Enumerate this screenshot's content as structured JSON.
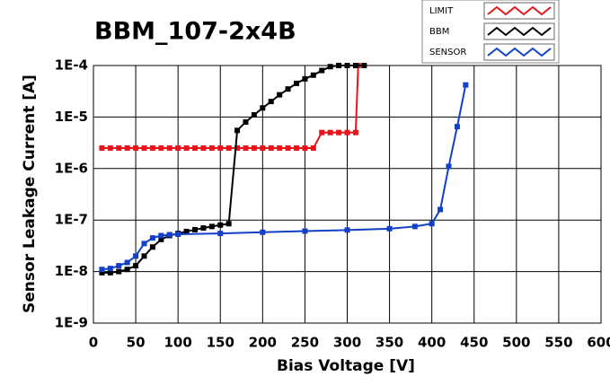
{
  "chart_data": {
    "type": "line",
    "title": "BBM_107-2x4B",
    "x_label": "Bias Voltage [V]",
    "y_label": "Sensor Leakage Current [A]",
    "xlim": [
      0,
      600
    ],
    "xticks": [
      0,
      50,
      100,
      150,
      200,
      250,
      300,
      350,
      400,
      450,
      500,
      550,
      600
    ],
    "ylim": [
      1e-09,
      0.0001
    ],
    "log_y": true,
    "grid": true,
    "yticks": [
      {
        "value": 1e-09,
        "label": "1E-9"
      },
      {
        "value": 1e-08,
        "label": "1E-8"
      },
      {
        "value": 1e-07,
        "label": "1E-7"
      },
      {
        "value": 1e-06,
        "label": "1E-6"
      },
      {
        "value": 1e-05,
        "label": "1E-5"
      },
      {
        "value": 0.0001,
        "label": "1E-4"
      }
    ],
    "series": [
      {
        "name": "LIMIT",
        "color": "#e8141b",
        "x": [
          10,
          20,
          30,
          40,
          50,
          60,
          70,
          80,
          90,
          100,
          110,
          120,
          130,
          140,
          150,
          160,
          170,
          180,
          190,
          200,
          210,
          220,
          230,
          240,
          250,
          260,
          270,
          280,
          290,
          300,
          310,
          313
        ],
        "values": [
          2.5e-06,
          2.5e-06,
          2.5e-06,
          2.5e-06,
          2.5e-06,
          2.5e-06,
          2.5e-06,
          2.5e-06,
          2.5e-06,
          2.5e-06,
          2.5e-06,
          2.5e-06,
          2.5e-06,
          2.5e-06,
          2.5e-06,
          2.5e-06,
          2.5e-06,
          2.5e-06,
          2.5e-06,
          2.5e-06,
          2.5e-06,
          2.5e-06,
          2.5e-06,
          2.5e-06,
          2.5e-06,
          2.5e-06,
          5e-06,
          5e-06,
          5e-06,
          5e-06,
          5e-06,
          0.0001
        ]
      },
      {
        "name": "BBM",
        "color": "#000000",
        "x": [
          10,
          20,
          30,
          40,
          50,
          60,
          70,
          80,
          90,
          100,
          110,
          120,
          130,
          140,
          150,
          160,
          170,
          180,
          190,
          200,
          210,
          220,
          230,
          240,
          250,
          260,
          270,
          280,
          290,
          300,
          310,
          320
        ],
        "values": [
          9.5e-09,
          9.5e-09,
          1e-08,
          1.1e-08,
          1.3e-08,
          2e-08,
          3e-08,
          4.2e-08,
          5e-08,
          5.5e-08,
          6e-08,
          6.5e-08,
          7e-08,
          7.5e-08,
          8e-08,
          8.5e-08,
          5.5e-06,
          8e-06,
          1.1e-05,
          1.5e-05,
          2e-05,
          2.7e-05,
          3.5e-05,
          4.5e-05,
          5.5e-05,
          6.5e-05,
          8e-05,
          9.5e-05,
          0.0001,
          0.0001,
          0.0001,
          0.0001
        ]
      },
      {
        "name": "SENSOR",
        "color": "#1240c8",
        "x": [
          10,
          20,
          30,
          40,
          50,
          60,
          70,
          80,
          90,
          100,
          150,
          200,
          250,
          300,
          350,
          380,
          400,
          410,
          420,
          430,
          440
        ],
        "values": [
          1.1e-08,
          1.15e-08,
          1.3e-08,
          1.5e-08,
          2e-08,
          3.5e-08,
          4.5e-08,
          5e-08,
          5.2e-08,
          5.3e-08,
          5.5e-08,
          5.8e-08,
          6.1e-08,
          6.4e-08,
          6.8e-08,
          7.5e-08,
          8.5e-08,
          1.6e-07,
          1.1e-06,
          6.5e-06,
          4.2e-05
        ]
      }
    ]
  }
}
